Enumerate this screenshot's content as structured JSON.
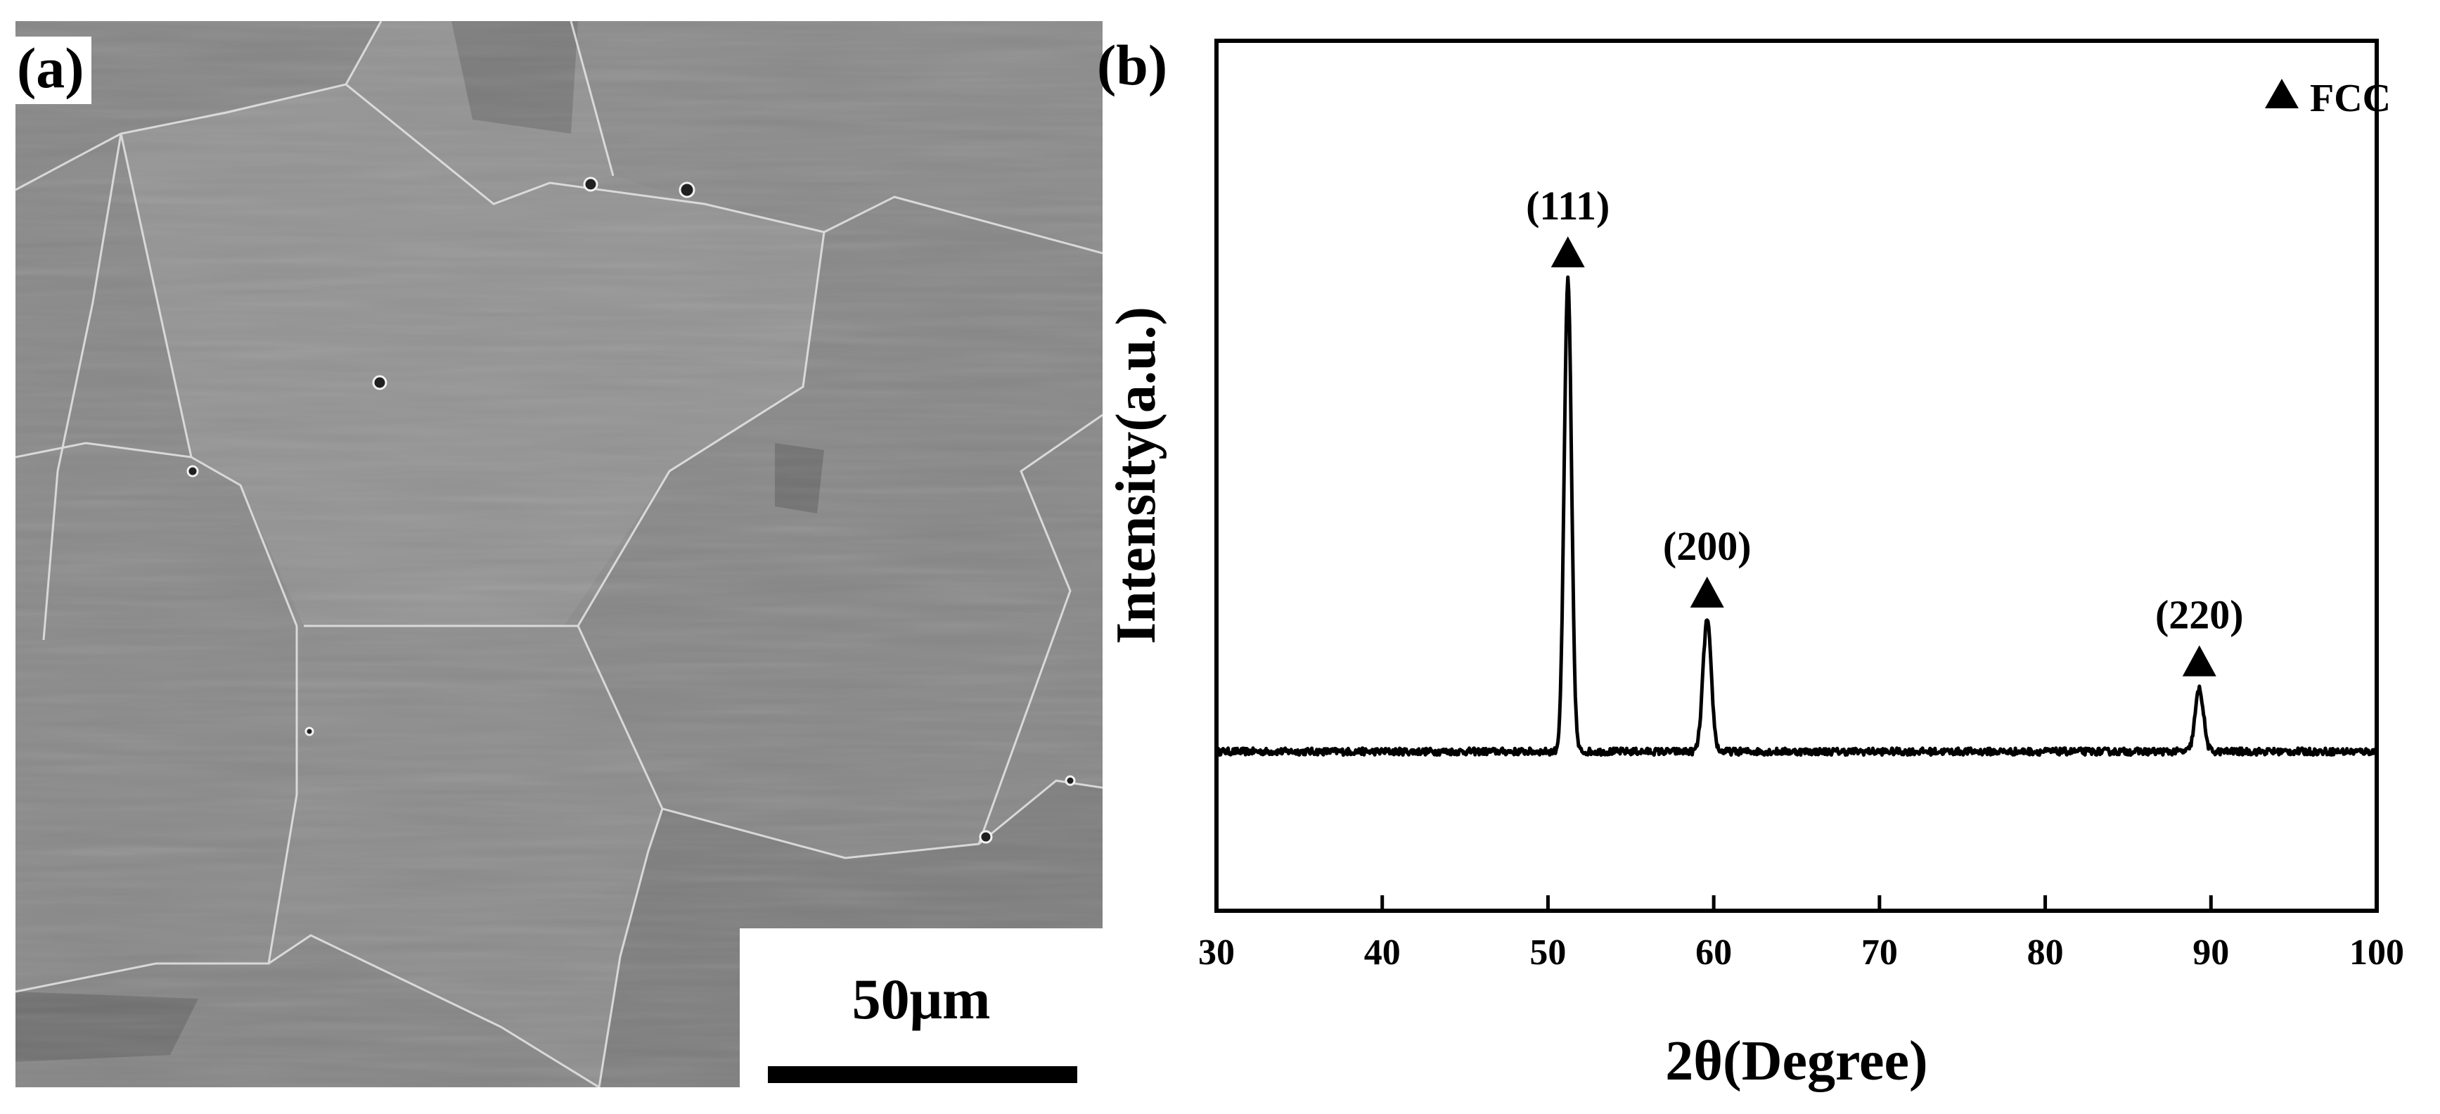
{
  "panel_a": {
    "label": "(a)",
    "scale_bar_text": "50μm"
  },
  "panel_b": {
    "label": "(b)"
  },
  "chart_data": {
    "type": "line",
    "title": "",
    "xlabel": "2θ(Degree)",
    "ylabel": "Intensity(a.u.)",
    "xlim": [
      30,
      100
    ],
    "xticks": [
      30,
      40,
      50,
      60,
      70,
      80,
      90,
      100
    ],
    "ylim": [
      0,
      1
    ],
    "yticks_shown": false,
    "grid": false,
    "legend": {
      "placement": "top-right",
      "entries": [
        {
          "marker": "triangle",
          "label": "FCC"
        }
      ]
    },
    "series": [
      {
        "baseline": 0.183,
        "peaks": [
          {
            "x": 51.2,
            "height": 0.542,
            "label": "(111)"
          },
          {
            "x": 59.6,
            "height": 0.151,
            "label": "(200)"
          },
          {
            "x": 89.3,
            "height": 0.072,
            "label": "(220)"
          }
        ]
      }
    ],
    "annotations": [
      {
        "x": 51.2,
        "text": "(111)",
        "marker": "triangle"
      },
      {
        "x": 59.6,
        "text": "(200)",
        "marker": "triangle"
      },
      {
        "x": 89.3,
        "text": "(220)",
        "marker": "triangle"
      }
    ]
  }
}
